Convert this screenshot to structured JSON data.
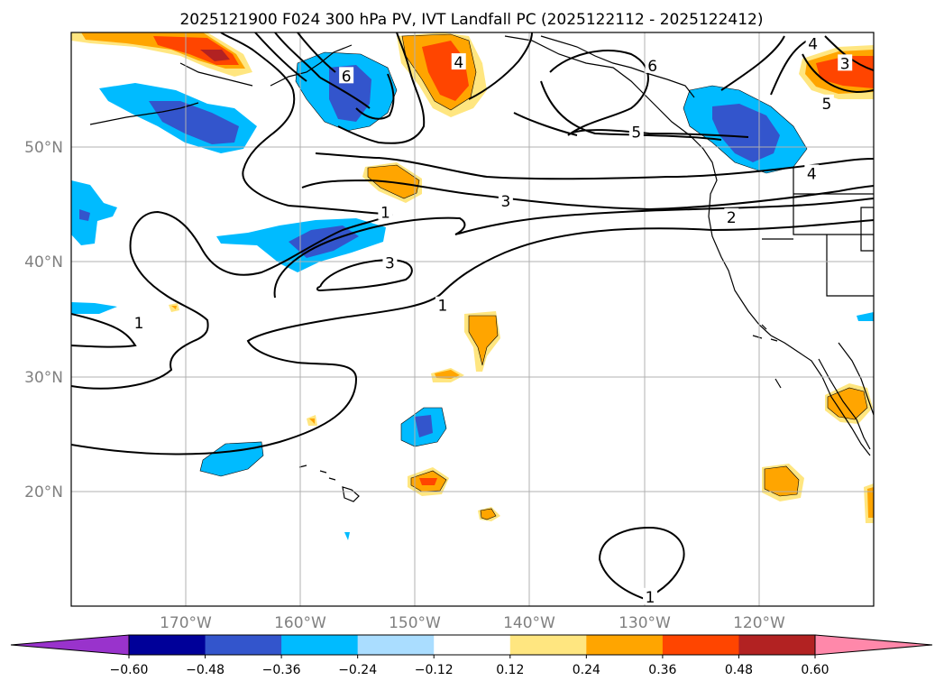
{
  "chart_data": {
    "type": "contour",
    "title": "2025121900 F024 300 hPa PV, IVT Landfall PC (2025122112 - 2025122412)",
    "x_ticks": [
      {
        "value": -170,
        "label": "170°W"
      },
      {
        "value": -160,
        "label": "160°W"
      },
      {
        "value": -150,
        "label": "150°W"
      },
      {
        "value": -140,
        "label": "140°W"
      },
      {
        "value": -130,
        "label": "130°W"
      },
      {
        "value": -120,
        "label": "120°W"
      }
    ],
    "y_ticks": [
      {
        "value": 50,
        "label": "50°N"
      },
      {
        "value": 40,
        "label": "40°N"
      },
      {
        "value": 30,
        "label": "30°N"
      },
      {
        "value": 20,
        "label": "20°N"
      }
    ],
    "xlim": [
      -180,
      -110
    ],
    "ylim": [
      10,
      60
    ],
    "colorbar": {
      "levels": [
        -0.6,
        -0.48,
        -0.36,
        -0.24,
        -0.12,
        0.12,
        0.24,
        0.36,
        0.48,
        0.6
      ],
      "tick_labels": [
        "−0.60",
        "−0.48",
        "−0.36",
        "−0.24",
        "−0.12",
        "0.12",
        "0.24",
        "0.36",
        "0.48",
        "0.60"
      ],
      "colors": [
        "#9933cc",
        "#000099",
        "#3355cc",
        "#00bbff",
        "#aaddff",
        "#ffffff",
        "#ffe680",
        "#ffa500",
        "#ff4500",
        "#b22222",
        "#ff88aa"
      ]
    },
    "contour_labels": [
      {
        "text": "1",
        "lon": -152.6,
        "lat": 44.3
      },
      {
        "text": "3",
        "lon": -142.1,
        "lat": 45.3
      },
      {
        "text": "3",
        "lon": -152.2,
        "lat": 39.9
      },
      {
        "text": "1",
        "lon": -147.6,
        "lat": 36.2
      },
      {
        "text": "1",
        "lon": -174.1,
        "lat": 34.7
      },
      {
        "text": "5",
        "lon": -130.7,
        "lat": 51.3
      },
      {
        "text": "6",
        "lon": -129.3,
        "lat": 57.1
      },
      {
        "text": "4",
        "lon": -146.2,
        "lat": 57.4
      },
      {
        "text": "6",
        "lon": -156.0,
        "lat": 56.2
      },
      {
        "text": "2",
        "lon": -122.4,
        "lat": 43.9
      },
      {
        "text": "4",
        "lon": -115.4,
        "lat": 47.7
      },
      {
        "text": "5",
        "lon": -114.1,
        "lat": 53.8
      },
      {
        "text": "3",
        "lon": -112.5,
        "lat": 57.3
      },
      {
        "text": "4",
        "lon": -115.3,
        "lat": 59.0
      },
      {
        "text": "1",
        "lon": -129.5,
        "lat": 10.8
      }
    ],
    "anomaly_regions": [
      {
        "name": "NE Pacific negative",
        "lon": -125.3,
        "lat": 51.7,
        "level": -0.36
      },
      {
        "name": "Gulf of Alaska negative",
        "lon": -155.1,
        "lat": 55.4,
        "level": -0.36
      },
      {
        "name": "Bering negative",
        "lon": -167.5,
        "lat": 53.8,
        "level": -0.36
      },
      {
        "name": "Central Pacific negative",
        "lon": -157.4,
        "lat": 41.8,
        "level": -0.36
      },
      {
        "name": "Subtropical negative",
        "lon": -149.4,
        "lat": 25.7,
        "level": -0.36
      },
      {
        "name": "Alaska positive",
        "lon": -147.9,
        "lat": 55.8,
        "level": 0.36
      },
      {
        "name": "Aleutian positive",
        "lon": -168.4,
        "lat": 58.4,
        "level": 0.48
      },
      {
        "name": "Canada positive",
        "lon": -112.9,
        "lat": 56.7,
        "level": 0.36
      },
      {
        "name": "Baja positive",
        "lon": -116.6,
        "lat": 27.2,
        "level": 0.24
      },
      {
        "name": "Subtropical positive",
        "lon": -141.5,
        "lat": 34.2,
        "level": 0.24
      }
    ]
  }
}
